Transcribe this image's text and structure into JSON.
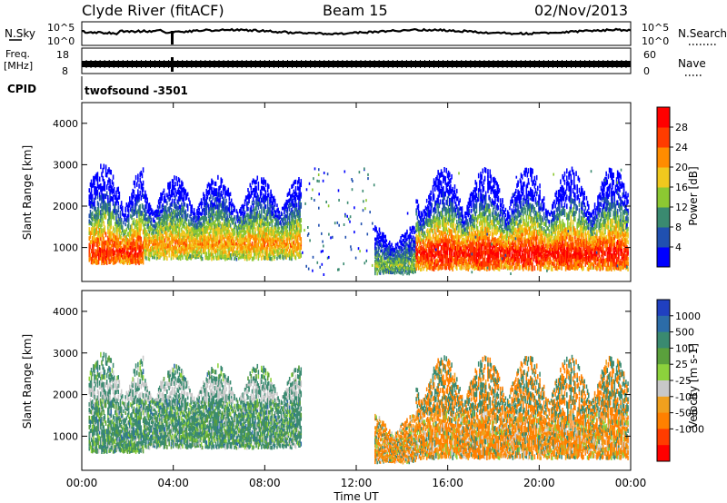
{
  "header": {
    "station": "Clyde River (fitACF)",
    "beam": "Beam 15",
    "date": "02/Nov/2013"
  },
  "summary_panels": {
    "nsky_label": "N.Sky",
    "nsky_ticks": [
      "10^5",
      "10^0"
    ],
    "nsearch_label": "N.Search",
    "nsearch_ticks": [
      "10^5",
      "10^0"
    ],
    "freq_label": "Freq.",
    "freq_unit": "[MHz]",
    "freq_ticks": [
      "18",
      "8"
    ],
    "nave_label": "Nave",
    "nave_ticks": [
      "60",
      "0"
    ],
    "cpid_label": "CPID",
    "cpid_value": "twofsound -3501"
  },
  "chart_data": [
    {
      "type": "heatmap",
      "panel": "power",
      "ylabel": "Slant Range [km]",
      "xlabel": "",
      "ylim": [
        180,
        4500
      ],
      "y_ticks": [
        "1000",
        "2000",
        "3000",
        "4000"
      ],
      "x_ticks": [
        "00:00",
        "04:00",
        "08:00",
        "12:00",
        "16:00",
        "20:00",
        "00:00"
      ],
      "colorbar": {
        "label": "Power [dB]",
        "ticks": [
          "4",
          "8",
          "12",
          "16",
          "20",
          "24",
          "28"
        ],
        "colors": [
          "#0000ff",
          "#2050b0",
          "#3a8a70",
          "#8cc832",
          "#f0c81e",
          "#ff8c00",
          "#ff3c00",
          "#ff0000"
        ]
      },
      "echo_regions": [
        {
          "t_start": 0.3,
          "t_end": 2.7,
          "r_low": 600,
          "r_high": 3000,
          "peak_range": 850,
          "peak_db": 28
        },
        {
          "t_start": 2.7,
          "t_end": 9.6,
          "r_low": 700,
          "r_high": 2700,
          "peak_range": 1050,
          "peak_db": 22
        },
        {
          "t_start": 12.8,
          "t_end": 14.6,
          "r_low": 350,
          "r_high": 1500,
          "peak_range": 550,
          "peak_db": 14
        },
        {
          "t_start": 14.6,
          "t_end": 23.9,
          "r_low": 450,
          "r_high": 2900,
          "peak_range": 800,
          "peak_db": 30
        }
      ]
    },
    {
      "type": "heatmap",
      "panel": "velocity",
      "ylabel": "Slant Range [km]",
      "xlabel": "Time UT",
      "ylim": [
        180,
        4500
      ],
      "y_ticks": [
        "1000",
        "2000",
        "3000",
        "4000"
      ],
      "x_ticks": [
        "00:00",
        "04:00",
        "08:00",
        "12:00",
        "16:00",
        "20:00",
        "00:00"
      ],
      "colorbar": {
        "label": "Velocity [m s-1]",
        "ticks": [
          "1000",
          "500",
          "100",
          "25",
          "-25",
          "-100",
          "-500",
          "-1000"
        ],
        "colors": [
          "#2040c0",
          "#2c6ca8",
          "#3a8a70",
          "#5aa03c",
          "#8cd23c",
          "#c8c8c8",
          "#f0a01e",
          "#ff8000",
          "#ff3c00",
          "#ff0000"
        ]
      },
      "echo_regions": [
        {
          "t_start": 0.3,
          "t_end": 2.7,
          "r_low": 600,
          "r_high": 3000,
          "dominant_velocity": 100
        },
        {
          "t_start": 2.7,
          "t_end": 9.6,
          "r_low": 700,
          "r_high": 2700,
          "dominant_velocity": 100
        },
        {
          "t_start": 12.8,
          "t_end": 14.6,
          "r_low": 350,
          "r_high": 1500,
          "dominant_velocity": -100
        },
        {
          "t_start": 14.6,
          "t_end": 23.9,
          "r_low": 450,
          "r_high": 2900,
          "dominant_velocity": -100
        }
      ]
    }
  ]
}
